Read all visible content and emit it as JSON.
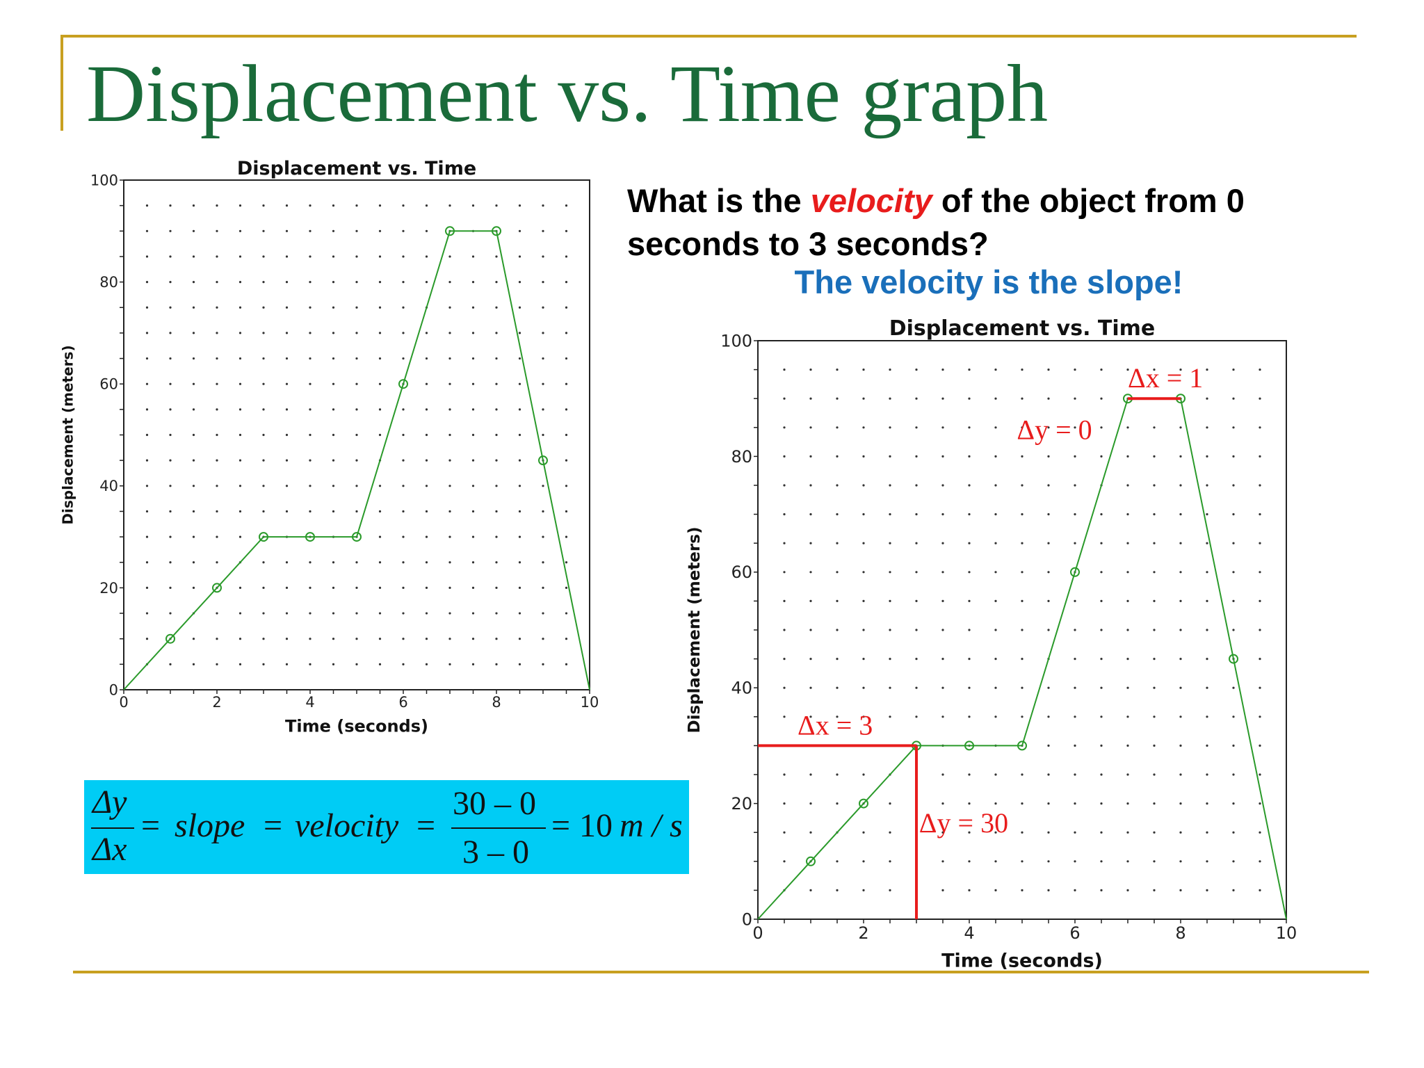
{
  "slide": {
    "title": "Displacement vs. Time graph",
    "question_part1": "What is the ",
    "question_emph": "velocity",
    "question_part2": " of the object from 0 seconds to 3 seconds?",
    "answer": "The velocity is the slope!"
  },
  "formula": {
    "dy": "Δy",
    "dx": "Δx",
    "eq1": "=",
    "slope": "slope",
    "eq2": "=",
    "velocity": "velocity",
    "eq3": "=",
    "num": "30 – 0",
    "den": "3 – 0",
    "eq4": "=",
    "result_num": "10",
    "result_unit": "m / s"
  },
  "colors": {
    "title": "#1a6b3a",
    "line": "#2a9a2a",
    "annotation": "#e81c1c",
    "answer": "#1a6fba",
    "formula_bg": "#00ccf5",
    "rule": "#c8a020"
  },
  "chart_data": [
    {
      "type": "line",
      "title": "Displacement vs. Time",
      "xlabel": "Time (seconds)",
      "ylabel": "Displacement (meters)",
      "x": [
        0,
        1,
        2,
        3,
        4,
        5,
        6,
        7,
        8,
        9,
        10
      ],
      "y": [
        0,
        10,
        20,
        30,
        30,
        30,
        60,
        90,
        90,
        45,
        0
      ],
      "xlim": [
        0,
        10
      ],
      "ylim": [
        0,
        100
      ],
      "xticks": [
        "0",
        "2",
        "4",
        "6",
        "8",
        "10"
      ],
      "yticks": [
        "0",
        "20",
        "40",
        "60",
        "80",
        "100"
      ],
      "grid": "dotted"
    },
    {
      "type": "line",
      "title": "Displacement vs. Time",
      "xlabel": "Time (seconds)",
      "ylabel": "Displacement (meters)",
      "x": [
        0,
        1,
        2,
        3,
        4,
        5,
        6,
        7,
        8,
        9,
        10
      ],
      "y": [
        0,
        10,
        20,
        30,
        30,
        30,
        60,
        90,
        90,
        45,
        0
      ],
      "xlim": [
        0,
        10
      ],
      "ylim": [
        0,
        100
      ],
      "xticks": [
        "0",
        "2",
        "4",
        "6",
        "8",
        "10"
      ],
      "yticks": [
        "0",
        "20",
        "40",
        "60",
        "80",
        "100"
      ],
      "grid": "dotted",
      "annotations": [
        {
          "text": "Δx = 3",
          "from": [
            0,
            30
          ],
          "to": [
            3,
            30
          ]
        },
        {
          "text": "Δy = 30",
          "from": [
            3,
            0
          ],
          "to": [
            3,
            30
          ]
        },
        {
          "text": "Δx = 1",
          "from": [
            7,
            90
          ],
          "to": [
            8,
            90
          ]
        },
        {
          "text": "Δy = 0"
        }
      ]
    }
  ]
}
